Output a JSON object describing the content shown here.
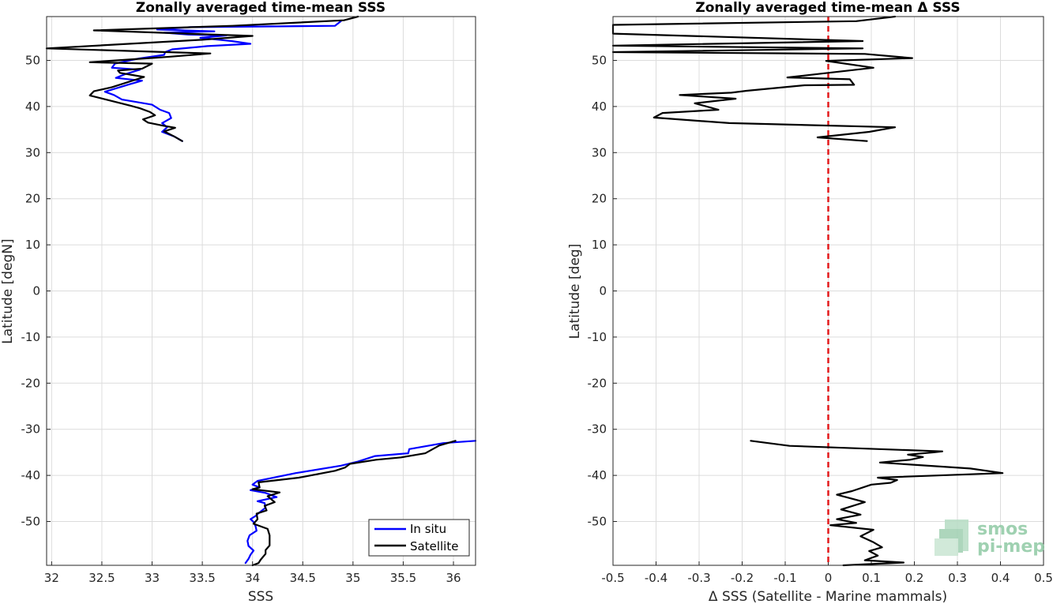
{
  "chart_data": [
    {
      "type": "line",
      "title": "Zonally averaged time-mean SSS",
      "xlabel": "SSS",
      "ylabel": "Latitude [degN]",
      "xlim": [
        31.95,
        36.22
      ],
      "ylim": [
        -59.5,
        59.5
      ],
      "xticks": [
        "32",
        "32.5",
        "33",
        "33.5",
        "34",
        "34.5",
        "35",
        "35.5",
        "36"
      ],
      "xtick_values": [
        32,
        32.5,
        33,
        33.5,
        34,
        34.5,
        35,
        35.5,
        36
      ],
      "yticks": [
        "50",
        "40",
        "30",
        "20",
        "10",
        "0",
        "-10",
        "-20",
        "-30",
        "-40",
        "-50"
      ],
      "ytick_values": [
        50,
        40,
        30,
        20,
        10,
        0,
        -10,
        -20,
        -30,
        -40,
        -50
      ],
      "grid": true,
      "legend_position": "bottom-right",
      "series": [
        {
          "name": "In situ",
          "color": "#0000ff",
          "segments": [
            [
              [
                34.88,
                58.5
              ],
              [
                34.82,
                57.5
              ],
              [
                33.38,
                57.2
              ],
              [
                33.05,
                56.7
              ],
              [
                33.62,
                56.3
              ],
              [
                33.12,
                56.0
              ],
              [
                33.36,
                55.6
              ],
              [
                33.74,
                55.4
              ],
              [
                33.48,
                54.9
              ],
              [
                33.79,
                54.2
              ],
              [
                33.98,
                53.6
              ],
              [
                33.55,
                53.1
              ],
              [
                33.2,
                52.4
              ],
              [
                33.13,
                51.8
              ],
              [
                33.12,
                51.2
              ],
              [
                32.87,
                50.4
              ],
              [
                32.63,
                49.3
              ],
              [
                32.6,
                48.4
              ],
              [
                32.88,
                48.0
              ],
              [
                32.73,
                47.0
              ],
              [
                32.64,
                46.2
              ],
              [
                32.9,
                45.6
              ],
              [
                32.77,
                44.8
              ],
              [
                32.53,
                43.2
              ],
              [
                32.62,
                42.5
              ],
              [
                32.7,
                41.5
              ],
              [
                33.0,
                40.4
              ],
              [
                33.08,
                39.3
              ],
              [
                33.17,
                38.6
              ],
              [
                33.19,
                37.5
              ],
              [
                33.1,
                36.4
              ],
              [
                33.15,
                35.5
              ],
              [
                33.1,
                34.5
              ],
              [
                33.22,
                33.5
              ],
              [
                33.3,
                32.5
              ]
            ],
            [
              [
                36.22,
                -32.5
              ],
              [
                35.9,
                -33.0
              ],
              [
                35.56,
                -34.3
              ],
              [
                35.55,
                -35.2
              ],
              [
                35.22,
                -35.8
              ],
              [
                35.05,
                -37.0
              ],
              [
                34.88,
                -37.9
              ],
              [
                34.43,
                -39.5
              ],
              [
                34.05,
                -41.2
              ],
              [
                34.0,
                -42.0
              ],
              [
                34.07,
                -42.6
              ],
              [
                33.98,
                -43.2
              ],
              [
                34.13,
                -43.8
              ],
              [
                34.24,
                -44.7
              ],
              [
                34.05,
                -45.6
              ],
              [
                34.12,
                -46.0
              ],
              [
                34.13,
                -47.0
              ],
              [
                34.06,
                -48.2
              ],
              [
                34.03,
                -48.8
              ],
              [
                33.98,
                -49.5
              ],
              [
                34.01,
                -50.1
              ],
              [
                34.03,
                -51.0
              ],
              [
                34.04,
                -52.0
              ],
              [
                33.97,
                -53.0
              ],
              [
                33.95,
                -54.2
              ],
              [
                33.96,
                -55.3
              ],
              [
                34.01,
                -56.3
              ],
              [
                33.98,
                -57.2
              ],
              [
                33.96,
                -58.1
              ],
              [
                33.93,
                -59.0
              ]
            ]
          ]
        },
        {
          "name": "Satellite",
          "color": "#000000",
          "segments": [
            [
              [
                35.05,
                59.5
              ],
              [
                34.91,
                58.7
              ],
              [
                33.8,
                57.5
              ],
              [
                32.42,
                56.5
              ],
              [
                34.0,
                55.3
              ],
              [
                33.52,
                54.5
              ],
              [
                31.95,
                52.6
              ],
              [
                33.58,
                51.5
              ],
              [
                33.18,
                50.8
              ],
              [
                33.05,
                50.6
              ],
              [
                32.38,
                49.6
              ],
              [
                33.0,
                49.3
              ],
              [
                32.9,
                48.2
              ],
              [
                32.66,
                47.8
              ],
              [
                32.68,
                47.3
              ],
              [
                32.92,
                46.4
              ],
              [
                32.6,
                44.2
              ],
              [
                32.42,
                43.3
              ],
              [
                32.38,
                42.4
              ],
              [
                32.78,
                40.2
              ],
              [
                32.88,
                39.6
              ],
              [
                32.98,
                38.8
              ],
              [
                33.03,
                38.1
              ],
              [
                32.91,
                37.2
              ],
              [
                32.96,
                36.5
              ],
              [
                33.12,
                35.8
              ],
              [
                33.23,
                35.4
              ],
              [
                33.12,
                34.6
              ],
              [
                33.22,
                33.5
              ],
              [
                33.3,
                32.5
              ]
            ],
            [
              [
                36.02,
                -32.5
              ],
              [
                35.86,
                -33.5
              ],
              [
                35.72,
                -35.2
              ],
              [
                35.48,
                -36.1
              ],
              [
                35.23,
                -36.6
              ],
              [
                34.97,
                -37.5
              ],
              [
                34.92,
                -38.3
              ],
              [
                34.82,
                -39.0
              ],
              [
                34.46,
                -40.5
              ],
              [
                34.06,
                -41.5
              ],
              [
                34.07,
                -42.6
              ],
              [
                34.0,
                -43.0
              ],
              [
                34.27,
                -43.7
              ],
              [
                34.15,
                -44.5
              ],
              [
                34.22,
                -45.8
              ],
              [
                34.12,
                -46.6
              ],
              [
                34.14,
                -47.6
              ],
              [
                34.04,
                -48.3
              ],
              [
                34.05,
                -49.5
              ],
              [
                34.01,
                -50.5
              ],
              [
                34.15,
                -51.6
              ],
              [
                34.17,
                -53.0
              ],
              [
                34.17,
                -54.0
              ],
              [
                34.17,
                -55.2
              ],
              [
                34.13,
                -56.2
              ],
              [
                34.13,
                -57.0
              ],
              [
                34.08,
                -58.3
              ],
              [
                34.06,
                -59.0
              ],
              [
                34.0,
                -59.5
              ]
            ]
          ]
        }
      ]
    },
    {
      "type": "line",
      "title": "Zonally averaged time-mean Δ SSS",
      "xlabel": "Δ SSS (Satellite - Marine mammals)",
      "ylabel": "Latitude [deg]",
      "xlim": [
        -0.5,
        0.5
      ],
      "ylim": [
        -59.5,
        59.5
      ],
      "xticks": [
        "-0.5",
        "-0.4",
        "-0.3",
        "-0.2",
        "-0.1",
        "0",
        "0.1",
        "0.2",
        "0.3",
        "0.4",
        "0.5"
      ],
      "xtick_values": [
        -0.5,
        -0.4,
        -0.3,
        -0.2,
        -0.1,
        0,
        0.1,
        0.2,
        0.3,
        0.4,
        0.5
      ],
      "yticks": [
        "50",
        "40",
        "30",
        "20",
        "10",
        "0",
        "-10",
        "-20",
        "-30",
        "-40",
        "-50"
      ],
      "ytick_values": [
        50,
        40,
        30,
        20,
        10,
        0,
        -10,
        -20,
        -30,
        -40,
        -50
      ],
      "grid": true,
      "reference_line": {
        "x": 0,
        "color": "#e41a1c",
        "style": "dashed"
      },
      "series": [
        {
          "color": "#000000",
          "segments": [
            [
              [
                0.155,
                59.5
              ],
              [
                0.065,
                58.5
              ],
              [
                -0.5,
                57.7
              ],
              [
                -0.5,
                55.8
              ],
              [
                0.08,
                54.2
              ],
              [
                -0.5,
                53.2
              ],
              [
                0.08,
                52.6
              ],
              [
                -0.5,
                51.8
              ],
              [
                0.085,
                51.4
              ],
              [
                0.195,
                50.5
              ],
              [
                -0.005,
                49.9
              ],
              [
                0.105,
                48.4
              ],
              [
                -0.095,
                46.3
              ],
              [
                0.05,
                45.9
              ],
              [
                0.06,
                44.7
              ],
              [
                -0.055,
                44.6
              ],
              [
                -0.19,
                43.4
              ],
              [
                -0.225,
                43.0
              ],
              [
                -0.345,
                42.5
              ],
              [
                -0.215,
                41.7
              ],
              [
                -0.31,
                40.7
              ],
              [
                -0.255,
                39.3
              ],
              [
                -0.385,
                38.6
              ],
              [
                -0.405,
                37.6
              ],
              [
                -0.23,
                36.4
              ],
              [
                0.155,
                35.5
              ],
              [
                0.095,
                34.5
              ],
              [
                -0.025,
                33.3
              ],
              [
                0.09,
                32.5
              ]
            ],
            [
              [
                -0.18,
                -32.5
              ],
              [
                -0.09,
                -33.6
              ],
              [
                0.265,
                -34.8
              ],
              [
                0.245,
                -35.0
              ],
              [
                0.185,
                -35.5
              ],
              [
                0.22,
                -36.0
              ],
              [
                0.19,
                -36.6
              ],
              [
                0.12,
                -37.2
              ],
              [
                0.33,
                -38.5
              ],
              [
                0.405,
                -39.5
              ],
              [
                0.115,
                -40.5
              ],
              [
                0.16,
                -41.0
              ],
              [
                0.145,
                -41.6
              ],
              [
                0.1,
                -42.0
              ],
              [
                0.055,
                -43.4
              ],
              [
                0.02,
                -44.2
              ],
              [
                0.085,
                -45.8
              ],
              [
                0.03,
                -47.4
              ],
              [
                0.075,
                -48.5
              ],
              [
                0.02,
                -49.5
              ],
              [
                0.065,
                -50.3
              ],
              [
                0.005,
                -50.8
              ],
              [
                0.105,
                -51.8
              ],
              [
                0.075,
                -53.2
              ],
              [
                0.105,
                -54.5
              ],
              [
                0.125,
                -55.6
              ],
              [
                0.095,
                -56.4
              ],
              [
                0.115,
                -57.4
              ],
              [
                0.085,
                -58.4
              ],
              [
                0.175,
                -58.9
              ],
              [
                0.035,
                -59.5
              ]
            ]
          ]
        }
      ]
    }
  ],
  "legend": {
    "items": [
      "In situ",
      "Satellite"
    ]
  },
  "logo": {
    "line1": "smos",
    "line2": "pi-mep"
  }
}
